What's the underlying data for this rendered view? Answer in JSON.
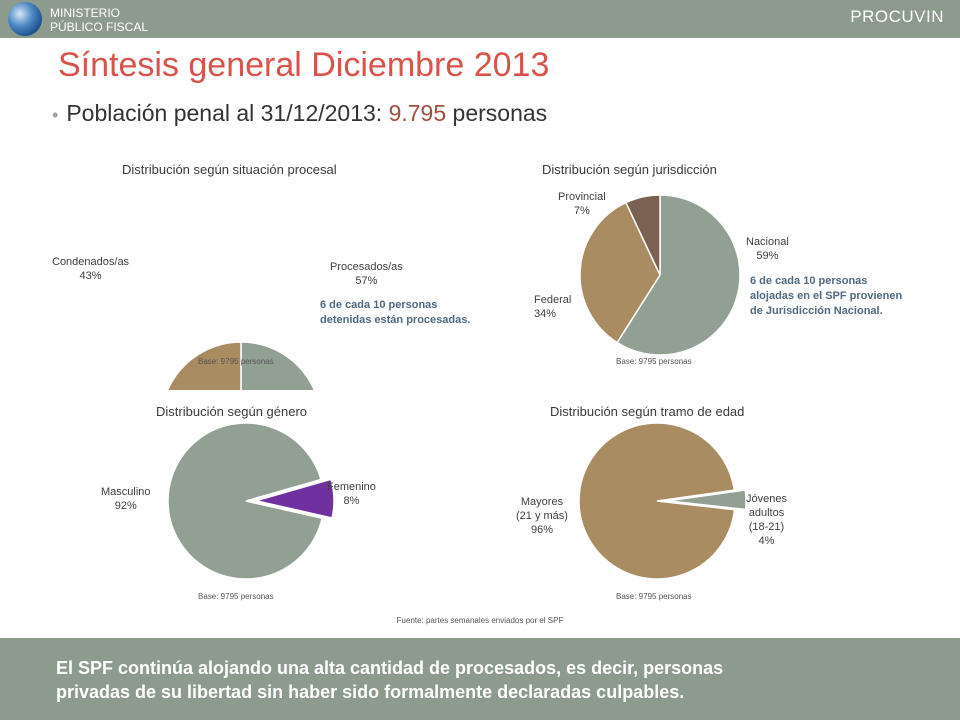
{
  "header": {
    "logo_line1": "MINISTERIO",
    "logo_line2": "PÚBLICO FISCAL",
    "brand": "PROCUVIN"
  },
  "title": "Síntesis general Diciembre 2013",
  "subtitle": {
    "prefix": "Población penal al 31/12/2013: ",
    "value": "9.795",
    "suffix": " personas"
  },
  "colors": {
    "header_bg": "#8c9b8e",
    "title": "#d9534a",
    "gray_green": "#929f93",
    "tan": "#a98c61",
    "brown": "#7a6152",
    "purple": "#7030a0",
    "note": "#4f6a80"
  },
  "chart_data": [
    {
      "type": "pie",
      "title": "Distribución según situación procesal",
      "base": "Base: 9795 personas",
      "slices": [
        {
          "label": "Procesados/as",
          "pct_text": "57%",
          "value": 57,
          "color": "#929f93"
        },
        {
          "label": "Condenados/as",
          "pct_text": "43%",
          "value": 43,
          "color": "#a98c61"
        }
      ],
      "note_lines": [
        "6 de cada 10 personas",
        "detenidas están procesadas."
      ]
    },
    {
      "type": "pie",
      "title": "Distribución según jurisdicción",
      "base": "Base: 9795 personas",
      "slices": [
        {
          "label": "Nacional",
          "pct_text": "59%",
          "value": 59,
          "color": "#929f93"
        },
        {
          "label": "Federal",
          "pct_text": "34%",
          "value": 34,
          "color": "#a98c61"
        },
        {
          "label": "Provincial",
          "pct_text": "7%",
          "value": 7,
          "color": "#7a6152"
        }
      ],
      "note_lines": [
        "6 de cada 10 personas",
        "alojadas en el SPF provienen",
        "de Jurisdicción Nacional."
      ]
    },
    {
      "type": "pie",
      "title": "Distribución según género",
      "base": "Base: 9795 personas",
      "slices": [
        {
          "label": "Femenino",
          "pct_text": "8%",
          "value": 8,
          "color": "#7030a0",
          "exploded": true
        },
        {
          "label": "Masculino",
          "pct_text": "92%",
          "value": 92,
          "color": "#929f93"
        }
      ]
    },
    {
      "type": "pie",
      "title": "Distribución según tramo de edad",
      "base": "Base: 9795 personas",
      "slices": [
        {
          "label": "Jóvenes adultos (18-21)",
          "label_lines": [
            "Jóvenes",
            "adultos",
            "(18-21)"
          ],
          "pct_text": "4%",
          "value": 4,
          "color": "#929f93",
          "exploded": true
        },
        {
          "label": "Mayores (21 y más)",
          "label_lines": [
            "Mayores",
            "(21 y más)"
          ],
          "pct_text": "96%",
          "value": 96,
          "color": "#a98c61"
        }
      ]
    }
  ],
  "source": "Fuente: partes semanales enviados por el SPF",
  "footer": {
    "line1": "El SPF continúa alojando una alta cantidad de procesados, es decir, personas",
    "line2": "privadas de su libertad sin haber sido formalmente declaradas culpables."
  }
}
